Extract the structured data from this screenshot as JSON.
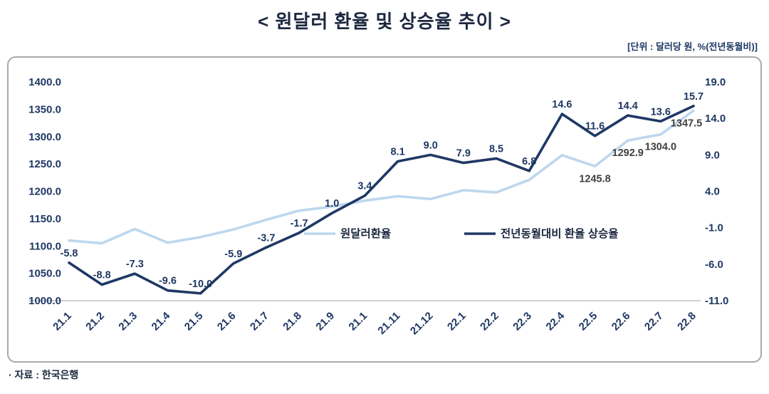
{
  "page": {
    "title": "< 원달러 환율 및 상승율 추이 >",
    "unit_note": "[단위 : 달러당 원, %(전년동월비)]",
    "source": "· 자료 : 한국은행"
  },
  "chart_data": {
    "type": "line",
    "title": "원달러 환율 및 상승율 추이",
    "categories": [
      "21.1",
      "21.2",
      "21.3",
      "21.4",
      "21.5",
      "21.6",
      "21.7",
      "21.8",
      "21.9",
      "21.1",
      "21.11",
      "21.12",
      "22.1",
      "22.2",
      "22.3",
      "22.4",
      "22.5",
      "22.6",
      "22.7",
      "22.8"
    ],
    "series": [
      {
        "name": "원달러환율",
        "axis": "left",
        "color": "#BDD7EE",
        "values": [
          1110.0,
          1105.0,
          1131.0,
          1106.0,
          1116.3,
          1130.2,
          1147.9,
          1164.6,
          1172.0,
          1183.0,
          1191.0,
          1186.0,
          1202.0,
          1198.0,
          1221.0,
          1266.0,
          1245.8,
          1292.9,
          1304.0,
          1347.5
        ],
        "point_labels": {
          "16": "1245.8",
          "17": "1292.9",
          "18": "1304.0",
          "19": "1347.5"
        }
      },
      {
        "name": "전년동월대비 환율 상승율",
        "axis": "right",
        "color": "#1F3864",
        "values": [
          -5.8,
          -8.8,
          -7.3,
          -9.6,
          -10.0,
          -5.9,
          -3.7,
          -1.7,
          1.0,
          3.4,
          8.1,
          9.0,
          7.9,
          8.5,
          6.8,
          14.6,
          11.6,
          14.4,
          13.6,
          15.7
        ],
        "show_all_labels": true
      }
    ],
    "left_axis": {
      "min": 1000,
      "max": 1400,
      "step": 50,
      "ticks": [
        "1400.0",
        "1350.0",
        "1300.0",
        "1250.0",
        "1200.0",
        "1150.0",
        "1100.0",
        "1050.0",
        "1000.0"
      ]
    },
    "right_axis": {
      "min": -11,
      "max": 19,
      "step": 5,
      "ticks": [
        "19.0",
        "14.0",
        "9.0",
        "4.0",
        "-1.0",
        "-6.0",
        "-11.0"
      ]
    },
    "legend": [
      "원달러환율",
      "전년동월대비 환율 상승율"
    ],
    "legend_position": "inside-middle",
    "grid": false
  }
}
